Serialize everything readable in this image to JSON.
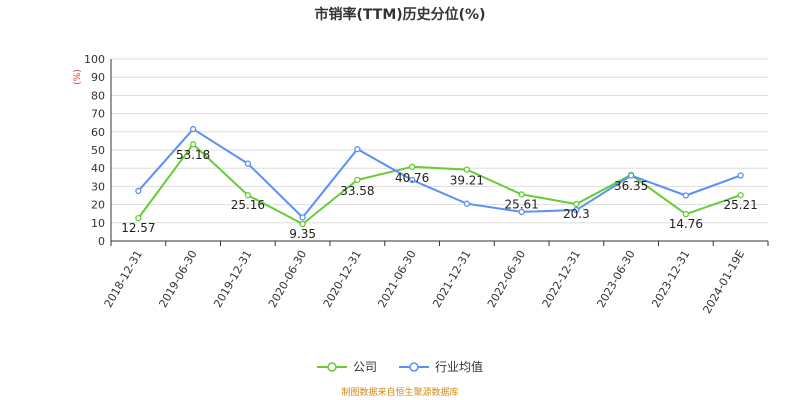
{
  "colors": {
    "company": "#66cc33",
    "industry": "#5b8ff9",
    "unit": "#e03030",
    "source": "#d4880e"
  },
  "chart_data": {
    "type": "line",
    "title": "市销率(TTM)历史分位(%)",
    "unit_label": "(%)",
    "categories": [
      "2018-12-31",
      "2019-06-30",
      "2019-12-31",
      "2020-06-30",
      "2020-12-31",
      "2021-06-30",
      "2021-12-31",
      "2022-06-30",
      "2022-12-31",
      "2023-06-30",
      "2023-12-31",
      "2024-01-19E"
    ],
    "y_ticks": [
      "0",
      "10",
      "20",
      "30",
      "40",
      "50",
      "60",
      "70",
      "80",
      "90",
      "100"
    ],
    "ylim": [
      0,
      100
    ],
    "grid": true,
    "legend_position": "bottom",
    "series": [
      {
        "name": "公司",
        "color_key": "company",
        "values": [
          12.57,
          53.18,
          25.16,
          9.35,
          33.58,
          40.76,
          39.21,
          25.61,
          20.3,
          36.35,
          14.76,
          25.21
        ],
        "labels": [
          "12.57",
          "53.18",
          "25.16",
          "9.35",
          "33.58",
          "40.76",
          "39.21",
          "25.61",
          "20.3",
          "36.35",
          "14.76",
          "25.21"
        ]
      },
      {
        "name": "行业均值",
        "color_key": "industry",
        "values": [
          27.5,
          61.5,
          42.5,
          13.0,
          50.5,
          33.5,
          20.5,
          16.0,
          17.0,
          36.0,
          25.0,
          36.0
        ]
      }
    ]
  },
  "source": "制图数据来自恒生聚源数据库"
}
